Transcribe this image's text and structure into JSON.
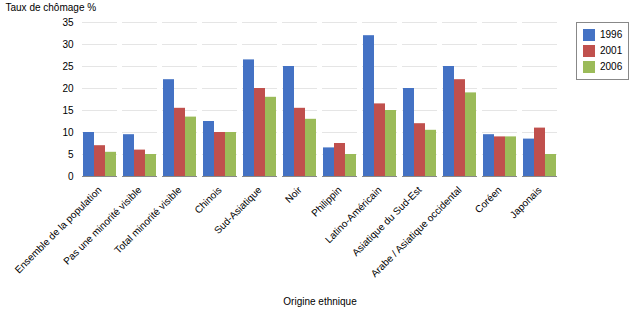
{
  "chart_data": {
    "type": "bar",
    "xlabel": "Origine ethnique",
    "ylabel": "Taux de chômage %",
    "categories": [
      "Ensemble de la population",
      "Pas une minorité visible",
      "Total minorité visible",
      "Chinois",
      "Sud-Asiatique",
      "Noir",
      "Philippin",
      "Latino-Américain",
      "Asiatique du Sud-Est",
      "Arabe / Asiatique occidental",
      "Coréen",
      "Japonais"
    ],
    "series": [
      {
        "name": "1996",
        "color": "#4472C4",
        "values": [
          10.0,
          9.5,
          22.0,
          12.5,
          26.5,
          25.0,
          6.5,
          32.0,
          20.0,
          25.0,
          9.5,
          8.5
        ]
      },
      {
        "name": "2001",
        "color": "#C0504D",
        "values": [
          7.0,
          6.0,
          15.5,
          10.0,
          20.0,
          15.5,
          7.5,
          16.5,
          12.0,
          22.0,
          9.0,
          11.0
        ]
      },
      {
        "name": "2006",
        "color": "#9BBB59",
        "values": [
          5.5,
          5.0,
          13.5,
          10.0,
          18.0,
          13.0,
          5.0,
          15.0,
          10.5,
          19.0,
          9.0,
          5.0
        ]
      }
    ],
    "ylim": [
      0,
      35
    ],
    "yticks": [
      0,
      5,
      10,
      15,
      20,
      25,
      30,
      35
    ],
    "grid": true,
    "legend": "right"
  }
}
